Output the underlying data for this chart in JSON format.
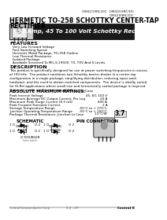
{
  "page_bg": "#ffffff",
  "title_part_numbers": "OM4219RC/DC  OM4259RC/DC\nOM4199RC/DC",
  "title_main_line1": "HERMETIC TO-258 SCHOTTKY CENTER-TAP",
  "title_main_line2": "RECTIFIER",
  "banner_text": "50 Amp, 45 To 100 Volt Schottky Rectifier",
  "banner_bg": "#1a1a1a",
  "banner_text_color": "#ffffff",
  "section_features": "FEATURES",
  "features_items": [
    "Very Low Forward Voltage",
    "Fast Switching Speed",
    "Hermetic Metal Package, TO-258 Outline",
    "Low Thermal Resistance",
    "Isolated Package",
    "Available Screened To MIL-S-19500: TX, TXV And S Levels"
  ],
  "section_description": "DESCRIPTION",
  "description_text": "This product is specifically designed for use at power switching frequencies in excess\nof 100 kHz.  The product combines two Schottky barrier diodes in a center tap\nconfiguration in a single package, simplifying distribution, reducing input work\nhardware, and the need to obtain matched components.  The device is ideally suited\nfor Hi-Rel applications where small size and hermetically sealed package is required.\nCommon anode configuration available.",
  "section_ratings": "ABSOLUTE MAXIMUM RATINGS:",
  "ratings_sub": "Tⱼ = 25°C Co Per Case",
  "ratings_items": [
    [
      "Peak Inverse Voltage",
      "45, 60, 100 V"
    ],
    [
      "Maximum Average DC Output Current, Per Leg",
      "20 A"
    ],
    [
      "Maximum Peak Surge Current (8.3 mS)",
      "400 A"
    ],
    [
      "Peak Forward Transient Current",
      "2 A"
    ],
    [
      "Storage Temperature Range",
      "-55°C to + 175°C"
    ],
    [
      "Junction Operating Temperature Range",
      "-55°C to + 150°C"
    ],
    [
      "Package Thermal Resistance, Junction to Case",
      "1.1°C/W"
    ]
  ],
  "schematic_label": "SCHEMATIC",
  "pin_connection_label": "PIN CONNECTION",
  "page_num": "3.7",
  "footer_center": "3.2 - 29",
  "footer_right": "Central ≡",
  "footer_left": "Central Semiconductor Corp."
}
